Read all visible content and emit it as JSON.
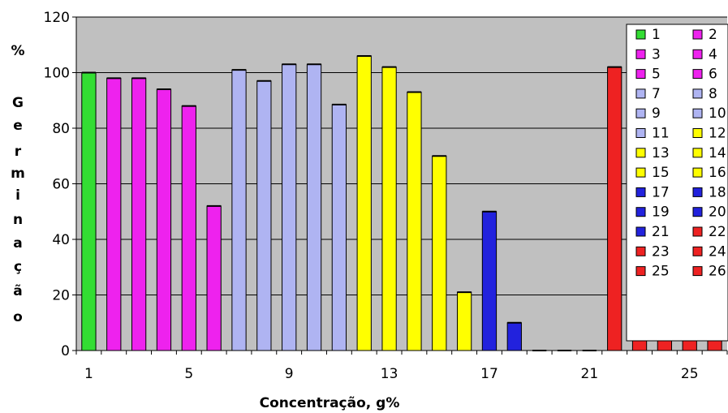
{
  "chart_data": {
    "type": "bar",
    "title": "",
    "xlabel": "Concentração, g%",
    "ylabel_chars": [
      "%",
      "G",
      "e",
      "r",
      "m",
      "i",
      "n",
      "a",
      "ç",
      "ã",
      "o"
    ],
    "ylim": [
      0,
      120
    ],
    "y_ticks": [
      "0",
      "20",
      "40",
      "60",
      "80",
      "100",
      "120"
    ],
    "x_ticks": [
      "1",
      "5",
      "9",
      "13",
      "17",
      "21",
      "25"
    ],
    "grid": true,
    "legend_position": "right",
    "plot_background": "#C0C0C0",
    "series": [
      {
        "name": "1",
        "value": 100,
        "color": "#33DD33"
      },
      {
        "name": "2",
        "value": 98,
        "color": "#EE22EE"
      },
      {
        "name": "3",
        "value": 98,
        "color": "#EE22EE"
      },
      {
        "name": "4",
        "value": 94,
        "color": "#EE22EE"
      },
      {
        "name": "5",
        "value": 88,
        "color": "#EE22EE"
      },
      {
        "name": "6",
        "value": 52,
        "color": "#EE22EE"
      },
      {
        "name": "7",
        "value": 101,
        "color": "#AFB4F2"
      },
      {
        "name": "8",
        "value": 97,
        "color": "#AFB4F2"
      },
      {
        "name": "9",
        "value": 103,
        "color": "#AFB4F2"
      },
      {
        "name": "10",
        "value": 103,
        "color": "#AFB4F2"
      },
      {
        "name": "11",
        "value": 88.5,
        "color": "#AFB4F2"
      },
      {
        "name": "12",
        "value": 106,
        "color": "#FFFF00"
      },
      {
        "name": "13",
        "value": 102,
        "color": "#FFFF00"
      },
      {
        "name": "14",
        "value": 93,
        "color": "#FFFF00"
      },
      {
        "name": "15",
        "value": 70,
        "color": "#FFFF00"
      },
      {
        "name": "16",
        "value": 21,
        "color": "#FFFF00"
      },
      {
        "name": "17",
        "value": 50,
        "color": "#2222DD"
      },
      {
        "name": "18",
        "value": 10,
        "color": "#2222DD"
      },
      {
        "name": "19",
        "value": 0,
        "color": "#2222DD"
      },
      {
        "name": "20",
        "value": 0,
        "color": "#2222DD"
      },
      {
        "name": "21",
        "value": 0,
        "color": "#2222DD"
      },
      {
        "name": "22",
        "value": 102,
        "color": "#EE2222"
      },
      {
        "name": "23",
        "value": 93,
        "color": "#EE2222"
      },
      {
        "name": "24",
        "value": 85,
        "color": "#EE2222"
      },
      {
        "name": "25",
        "value": 47,
        "color": "#EE2222"
      },
      {
        "name": "26",
        "value": 21,
        "color": "#EE2222"
      }
    ]
  }
}
